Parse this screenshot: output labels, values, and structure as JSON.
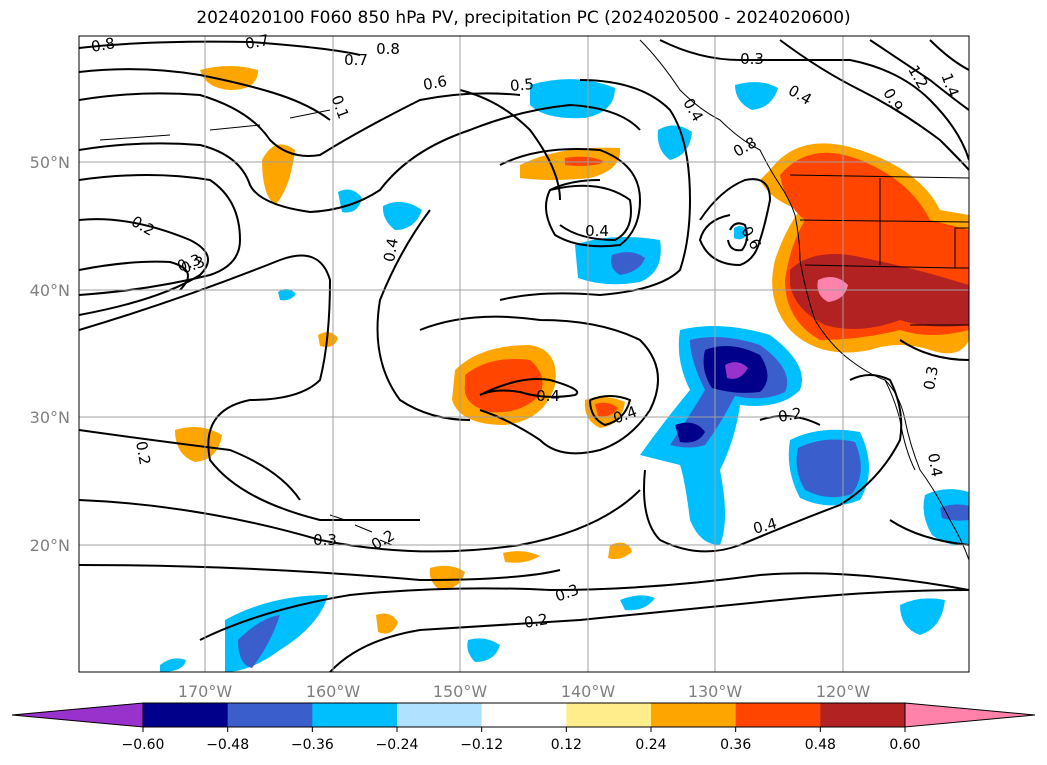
{
  "title": "2024020100 F060 850 hPa PV, precipitation PC (2024020500 - 2024020600)",
  "map": {
    "lat_labels": [
      "50°N",
      "40°N",
      "30°N",
      "20°N"
    ],
    "lon_labels": [
      "170°W",
      "160°W",
      "150°W",
      "140°W",
      "130°W",
      "120°W"
    ],
    "contour_labels": [
      "0.8",
      "0.7",
      "0.8",
      "0.7",
      "0.1",
      "0.6",
      "0.5",
      "0.3",
      "0.4",
      "1.2",
      "1.4",
      "0.9",
      "0.8",
      "0.2",
      "0.3",
      "0.4",
      "0.4",
      "0.6",
      "0.4",
      "0.4",
      "0.4",
      "0.2",
      "0.3",
      "0.2",
      "0.3",
      "0.2",
      "0.3",
      "0.2",
      "0.4",
      "0.3",
      "0.4"
    ]
  },
  "colorbar": {
    "ticks": [
      "−0.60",
      "−0.48",
      "−0.36",
      "−0.24",
      "−0.12",
      "0.12",
      "0.24",
      "0.36",
      "0.48",
      "0.60"
    ],
    "colors": [
      "#9932cc",
      "#00008b",
      "#3a5fcd",
      "#00bfff",
      "#b0e2ff",
      "#ffffff",
      "#ffec8b",
      "#ffa500",
      "#ff4500",
      "#b22222",
      "#ff82ab"
    ]
  }
}
